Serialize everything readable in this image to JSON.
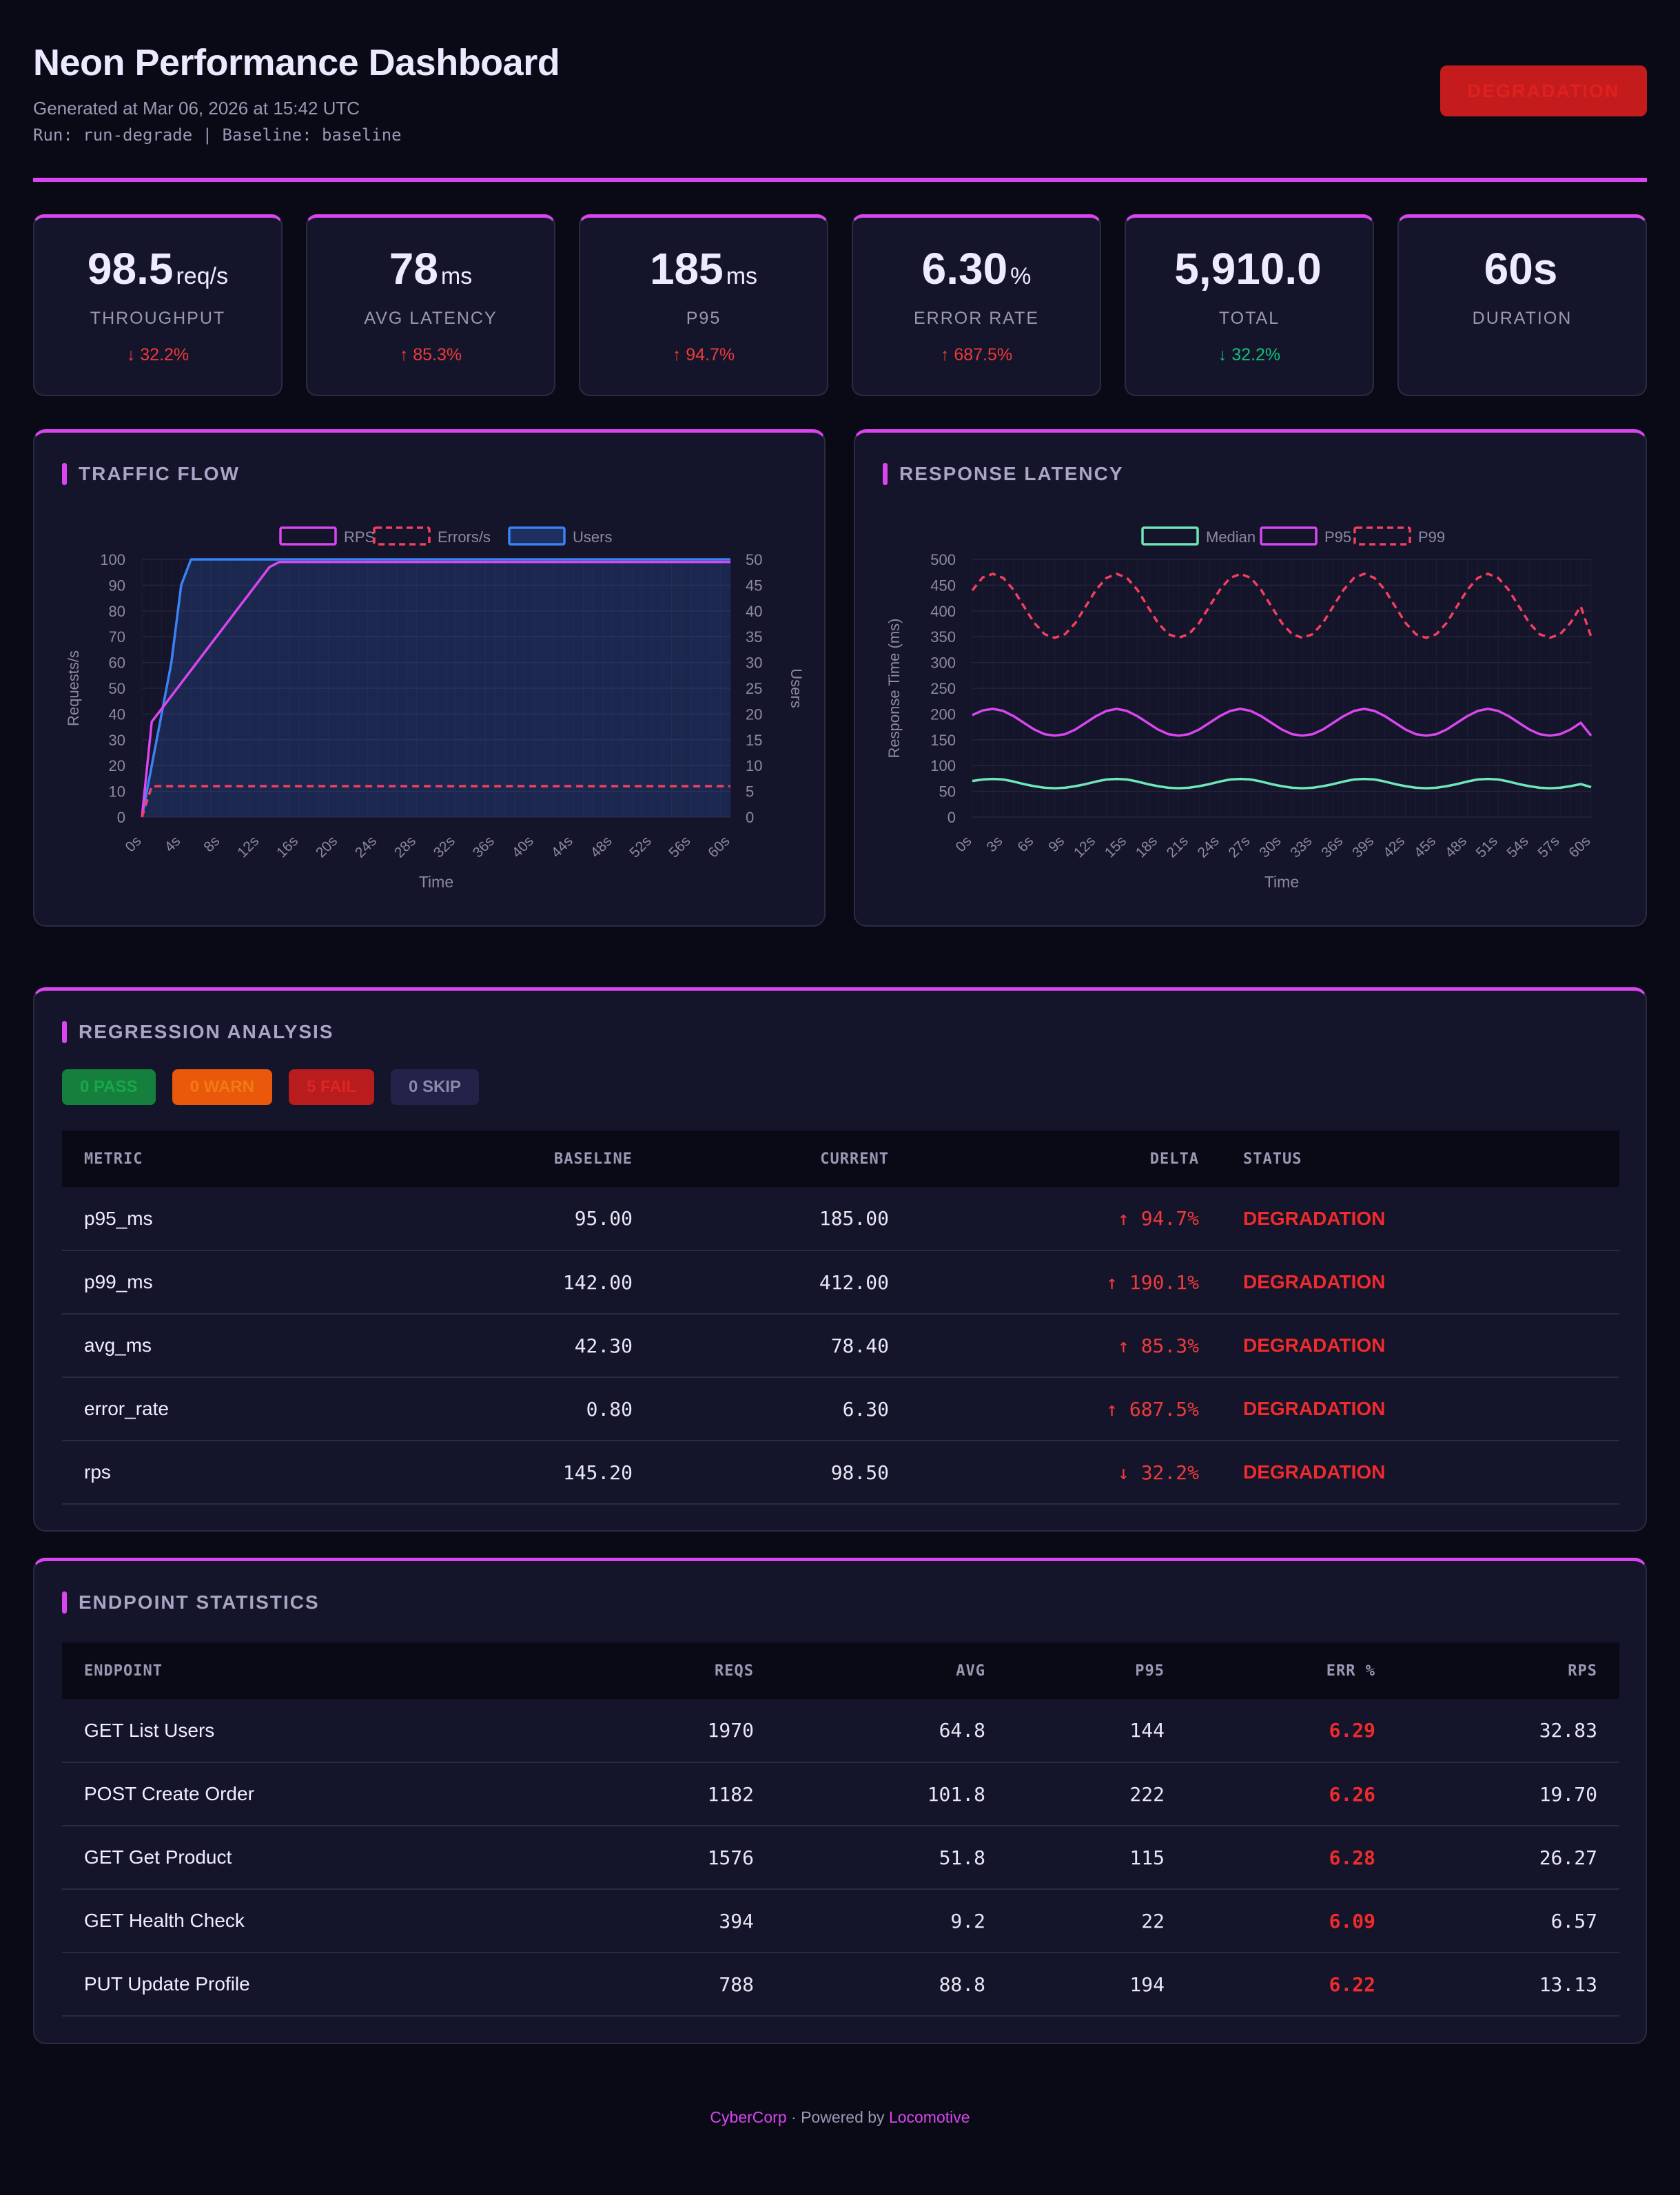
{
  "header": {
    "title": "Neon Performance Dashboard",
    "generated": "Generated at Mar 06, 2026 at 15:42 UTC",
    "run_info": "Run: run-degrade | Baseline: baseline",
    "verdict": "DEGRADATION"
  },
  "kpis": [
    {
      "value": "98.5",
      "unit": "req/s",
      "label": "THROUGHPUT",
      "delta": "↓ 32.2%",
      "trend": "bad"
    },
    {
      "value": "78",
      "unit": "ms",
      "label": "AVG LATENCY",
      "delta": "↑ 85.3%",
      "trend": "bad"
    },
    {
      "value": "185",
      "unit": "ms",
      "label": "P95",
      "delta": "↑ 94.7%",
      "trend": "bad"
    },
    {
      "value": "6.30",
      "unit": "%",
      "label": "ERROR RATE",
      "delta": "↑ 687.5%",
      "trend": "bad"
    },
    {
      "value": "5,910.0",
      "unit": "",
      "label": "TOTAL",
      "delta": "↓ 32.2%",
      "trend": "good"
    },
    {
      "value": "60s",
      "unit": "",
      "label": "DURATION",
      "delta": "",
      "trend": ""
    }
  ],
  "panels": {
    "traffic_title": "TRAFFIC FLOW",
    "latency_title": "RESPONSE LATENCY",
    "regression_title": "REGRESSION ANALYSIS",
    "endpoints_title": "ENDPOINT STATISTICS"
  },
  "colors": {
    "accent": "#d946ef",
    "rps": "#d946ef",
    "errors": "#f43f5e",
    "users": "#3b82f6",
    "median": "#6ee7b7",
    "p95": "#d946ef",
    "p99": "#f43f5e"
  },
  "chart_data": [
    {
      "type": "line",
      "x": [
        "0s",
        "1s",
        "2s",
        "3s",
        "4s",
        "5s",
        "6s",
        "7s",
        "8s",
        "9s",
        "10s",
        "11s",
        "12s",
        "13s",
        "14s",
        "15s",
        "16s",
        "17s",
        "18s",
        "19s",
        "20s",
        "21s",
        "22s",
        "23s",
        "24s",
        "25s",
        "26s",
        "27s",
        "28s",
        "29s",
        "30s",
        "31s",
        "32s",
        "33s",
        "34s",
        "35s",
        "36s",
        "37s",
        "38s",
        "39s",
        "40s",
        "41s",
        "42s",
        "43s",
        "44s",
        "45s",
        "46s",
        "47s",
        "48s",
        "49s",
        "50s",
        "51s",
        "52s",
        "53s",
        "54s",
        "55s",
        "56s",
        "57s",
        "58s",
        "59s",
        "60s"
      ],
      "x_tick_labels": [
        "0s",
        "4s",
        "8s",
        "12s",
        "16s",
        "20s",
        "24s",
        "28s",
        "32s",
        "36s",
        "40s",
        "44s",
        "48s",
        "52s",
        "56s",
        "60s"
      ],
      "series": [
        {
          "name": "RPS",
          "axis": "left",
          "style": "solid",
          "fill": false,
          "values": [
            0,
            37,
            42,
            47,
            52,
            57,
            62,
            67,
            72,
            77,
            82,
            87,
            92,
            97,
            99,
            99,
            99,
            99,
            99,
            99,
            99,
            99,
            99,
            99,
            99,
            99,
            99,
            99,
            99,
            99,
            99,
            99,
            99,
            99,
            99,
            99,
            99,
            99,
            99,
            99,
            99,
            99,
            99,
            99,
            99,
            99,
            99,
            99,
            99,
            99,
            99,
            99,
            99,
            99,
            99,
            99,
            99,
            99,
            99,
            99,
            99
          ]
        },
        {
          "name": "Errors/s",
          "axis": "left",
          "style": "dashed",
          "fill": false,
          "values": [
            0,
            12,
            12,
            12,
            12,
            12,
            12,
            12,
            12,
            12,
            12,
            12,
            12,
            12,
            12,
            12,
            12,
            12,
            12,
            12,
            12,
            12,
            12,
            12,
            12,
            12,
            12,
            12,
            12,
            12,
            12,
            12,
            12,
            12,
            12,
            12,
            12,
            12,
            12,
            12,
            12,
            12,
            12,
            12,
            12,
            12,
            12,
            12,
            12,
            12,
            12,
            12,
            12,
            12,
            12,
            12,
            12,
            12,
            12,
            12,
            12
          ]
        },
        {
          "name": "Users",
          "axis": "right",
          "style": "solid",
          "fill": true,
          "values": [
            0,
            10,
            20,
            30,
            45,
            50,
            50,
            50,
            50,
            50,
            50,
            50,
            50,
            50,
            50,
            50,
            50,
            50,
            50,
            50,
            50,
            50,
            50,
            50,
            50,
            50,
            50,
            50,
            50,
            50,
            50,
            50,
            50,
            50,
            50,
            50,
            50,
            50,
            50,
            50,
            50,
            50,
            50,
            50,
            50,
            50,
            50,
            50,
            50,
            50,
            50,
            50,
            50,
            50,
            50,
            50,
            50,
            50,
            50,
            50,
            50
          ]
        }
      ],
      "xlabel": "Time",
      "ylabel": "Requests/s",
      "y2label": "Users",
      "ylim": [
        0,
        100
      ],
      "y2lim": [
        0,
        50
      ],
      "y_ticks": [
        0,
        10,
        20,
        30,
        40,
        50,
        60,
        70,
        80,
        90,
        100
      ],
      "y2_ticks": [
        0,
        5,
        10,
        15,
        20,
        25,
        30,
        35,
        40,
        45,
        50
      ],
      "legend": "top-center",
      "grid": true
    },
    {
      "type": "line",
      "x": [
        "0s",
        "1s",
        "2s",
        "3s",
        "4s",
        "5s",
        "6s",
        "7s",
        "8s",
        "9s",
        "10s",
        "11s",
        "12s",
        "13s",
        "14s",
        "15s",
        "16s",
        "17s",
        "18s",
        "19s",
        "20s",
        "21s",
        "22s",
        "23s",
        "24s",
        "25s",
        "26s",
        "27s",
        "28s",
        "29s",
        "30s",
        "31s",
        "32s",
        "33s",
        "34s",
        "35s",
        "36s",
        "37s",
        "38s",
        "39s",
        "40s",
        "41s",
        "42s",
        "43s",
        "44s",
        "45s",
        "46s",
        "47s",
        "48s",
        "49s",
        "50s",
        "51s",
        "52s",
        "53s",
        "54s",
        "55s",
        "56s",
        "57s",
        "58s",
        "59s",
        "60s"
      ],
      "x_tick_labels": [
        "0s",
        "3s",
        "6s",
        "9s",
        "12s",
        "15s",
        "18s",
        "21s",
        "24s",
        "27s",
        "30s",
        "33s",
        "36s",
        "39s",
        "42s",
        "45s",
        "48s",
        "51s",
        "54s",
        "57s",
        "60s"
      ],
      "series": [
        {
          "name": "Median",
          "style": "solid",
          "values": [
            70,
            73,
            74,
            73,
            69,
            64,
            60,
            57,
            56,
            57,
            60,
            64,
            69,
            73,
            74,
            73,
            69,
            64,
            60,
            57,
            56,
            57,
            60,
            64,
            69,
            73,
            74,
            73,
            69,
            64,
            60,
            57,
            56,
            57,
            60,
            64,
            69,
            73,
            74,
            73,
            69,
            64,
            60,
            57,
            56,
            57,
            60,
            64,
            69,
            73,
            74,
            73,
            69,
            64,
            60,
            57,
            56,
            57,
            60,
            64,
            58
          ]
        },
        {
          "name": "P95",
          "style": "solid",
          "values": [
            198,
            207,
            210,
            206,
            196,
            183,
            170,
            161,
            158,
            161,
            170,
            183,
            196,
            206,
            210,
            206,
            196,
            183,
            170,
            161,
            158,
            161,
            170,
            183,
            196,
            206,
            210,
            206,
            196,
            183,
            170,
            161,
            158,
            161,
            170,
            183,
            196,
            206,
            210,
            206,
            196,
            183,
            170,
            161,
            158,
            161,
            170,
            183,
            196,
            206,
            210,
            206,
            196,
            183,
            170,
            161,
            158,
            161,
            170,
            183,
            158
          ]
        },
        {
          "name": "P99",
          "style": "dashed",
          "values": [
            440,
            465,
            472,
            464,
            441,
            409,
            377,
            355,
            348,
            355,
            377,
            409,
            441,
            464,
            472,
            464,
            441,
            409,
            377,
            355,
            348,
            355,
            377,
            409,
            441,
            464,
            472,
            464,
            441,
            409,
            377,
            355,
            348,
            355,
            377,
            409,
            441,
            464,
            472,
            464,
            441,
            409,
            377,
            355,
            348,
            355,
            377,
            409,
            441,
            464,
            472,
            464,
            441,
            409,
            377,
            355,
            348,
            355,
            377,
            409,
            350
          ]
        }
      ],
      "xlabel": "Time",
      "ylabel": "Response Time (ms)",
      "ylim": [
        0,
        500
      ],
      "y_ticks": [
        0,
        50,
        100,
        150,
        200,
        250,
        300,
        350,
        400,
        450,
        500
      ],
      "legend": "top-center",
      "grid": true
    }
  ],
  "regression": {
    "badges": [
      "0 PASS",
      "0 WARN",
      "5 FAIL",
      "0 SKIP"
    ],
    "columns": [
      "METRIC",
      "BASELINE",
      "CURRENT",
      "DELTA",
      "STATUS"
    ],
    "rows": [
      [
        "p95_ms",
        "95.00",
        "185.00",
        "↑ 94.7%",
        "DEGRADATION"
      ],
      [
        "p99_ms",
        "142.00",
        "412.00",
        "↑ 190.1%",
        "DEGRADATION"
      ],
      [
        "avg_ms",
        "42.30",
        "78.40",
        "↑ 85.3%",
        "DEGRADATION"
      ],
      [
        "error_rate",
        "0.80",
        "6.30",
        "↑ 687.5%",
        "DEGRADATION"
      ],
      [
        "rps",
        "145.20",
        "98.50",
        "↓ 32.2%",
        "DEGRADATION"
      ]
    ]
  },
  "endpoints": {
    "columns": [
      "ENDPOINT",
      "REQS",
      "AVG",
      "P95",
      "ERR %",
      "RPS"
    ],
    "rows": [
      [
        "GET List Users",
        "1970",
        "64.8",
        "144",
        "6.29",
        "32.83"
      ],
      [
        "POST Create Order",
        "1182",
        "101.8",
        "222",
        "6.26",
        "19.70"
      ],
      [
        "GET Get Product",
        "1576",
        "51.8",
        "115",
        "6.28",
        "26.27"
      ],
      [
        "GET Health Check",
        "394",
        "9.2",
        "22",
        "6.09",
        "6.57"
      ],
      [
        "PUT Update Profile",
        "788",
        "88.8",
        "194",
        "6.22",
        "13.13"
      ]
    ]
  },
  "footer": {
    "brand": "CyberCorp",
    "middle": " · Powered by ",
    "tool": "Locomotive"
  }
}
